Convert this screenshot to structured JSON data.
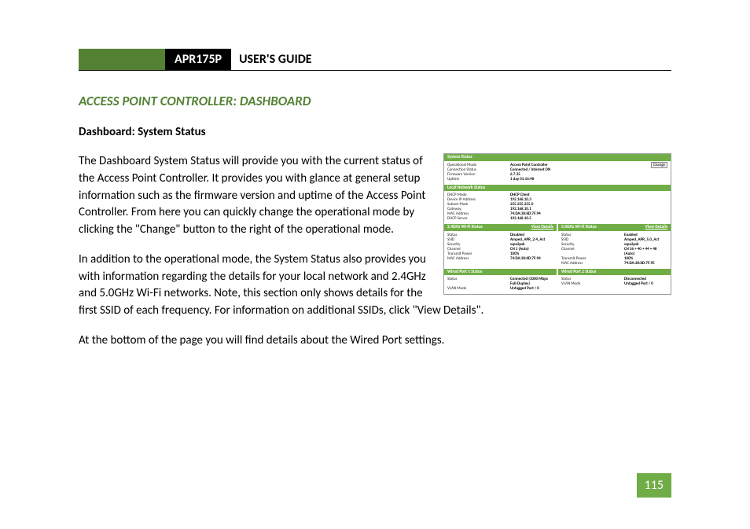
{
  "colors": {
    "green": "#548235",
    "green_light": "#70ad47",
    "black": "#000000",
    "white": "#ffffff",
    "border_gray": "#9a9a9a"
  },
  "header": {
    "model": "APR175P",
    "title": "USER'S GUIDE"
  },
  "section_title": "ACCESS POINT CONTROLLER: DASHBOARD",
  "subsection": "Dashboard: System Status",
  "paragraphs": {
    "p1": "The Dashboard System Status will provide you with the current status of the Access Point Controller.  It provides you with glance at general setup information such as the firmware version and uptime of the Access Point Controller.  From here you can quickly change the operational mode by clicking the \"Change\" button to the right of the operational mode.",
    "p2": "In addition to the operational mode, the System Status also provides you with information regarding the details for your local network and 2.4GHz and 5.0GHz Wi-Fi networks. Note, this section only shows details for the first SSID of each frequency.  For information on additional SSIDs, click \"View Details\".",
    "p3": "At the bottom of the page you will find details about the Wired Port settings."
  },
  "page_number": "115",
  "figure": {
    "system_status": {
      "title": "System Status",
      "rows": [
        {
          "k": "Operational Mode",
          "v": "Access Point Controller",
          "btn": "Change"
        },
        {
          "k": "Connection Status",
          "v": "Connected / Internet ON"
        },
        {
          "k": "Firmware Version",
          "v": "6.7.25"
        },
        {
          "k": "Uptime",
          "v": "1 day 01:16:48"
        }
      ]
    },
    "local_network": {
      "title": "Local Network Status",
      "rows": [
        {
          "k": "DHCP Mode",
          "v": "DHCP Client"
        },
        {
          "k": "Device IP Address",
          "v": "192.168.10.3"
        },
        {
          "k": "Subnet Mask",
          "v": "255.255.255.0"
        },
        {
          "k": "Gateway",
          "v": "192.168.10.1"
        },
        {
          "k": "MAC Address",
          "v": "74:DA:38:8D:7F:94"
        },
        {
          "k": "DHCP Server",
          "v": "192.168.10.5"
        }
      ]
    },
    "wifi_24": {
      "title": "2.4GHz Wi-Fi Status",
      "view_details": "View Details",
      "rows": [
        {
          "k": "Status",
          "v": "Disabled"
        },
        {
          "k": "SSID",
          "v": "Amped_APR_2.4_Act"
        },
        {
          "k": "Security",
          "v": "wpa2psk"
        },
        {
          "k": "Channel",
          "v": "CH 1 (Auto)"
        },
        {
          "k": "Transmit Power",
          "v": "100%"
        },
        {
          "k": "MAC Address",
          "v": "74:DA:38:8D:7F:94"
        }
      ]
    },
    "wifi_50": {
      "title": "5.0GHz Wi-Fi Status",
      "view_details": "View Details",
      "rows": [
        {
          "k": "Status",
          "v": "Enabled"
        },
        {
          "k": "SSID",
          "v": "Amped_APR_5.0_Act"
        },
        {
          "k": "Security",
          "v": "wpa2psk"
        },
        {
          "k": "Channel",
          "v": "CH 36 + 40 + 44 + 48 (Auto)"
        },
        {
          "k": "Transmit Power",
          "v": "100%"
        },
        {
          "k": "MAC Address",
          "v": "74:DA:38:8D:7F:95"
        }
      ]
    },
    "port1": {
      "title": "Wired Port 1 Status",
      "rows": [
        {
          "k": "Status",
          "v": "Connected (1000 Mbps Full-Duplex)"
        },
        {
          "k": "VLAN Mode",
          "v": "Untagged Port  /  0"
        }
      ]
    },
    "port2": {
      "title": "Wired Port 2 Status",
      "rows": [
        {
          "k": "Status",
          "v": "Disconnected"
        },
        {
          "k": "VLAN Mode",
          "v": "Untagged Port  /  0"
        }
      ]
    }
  }
}
